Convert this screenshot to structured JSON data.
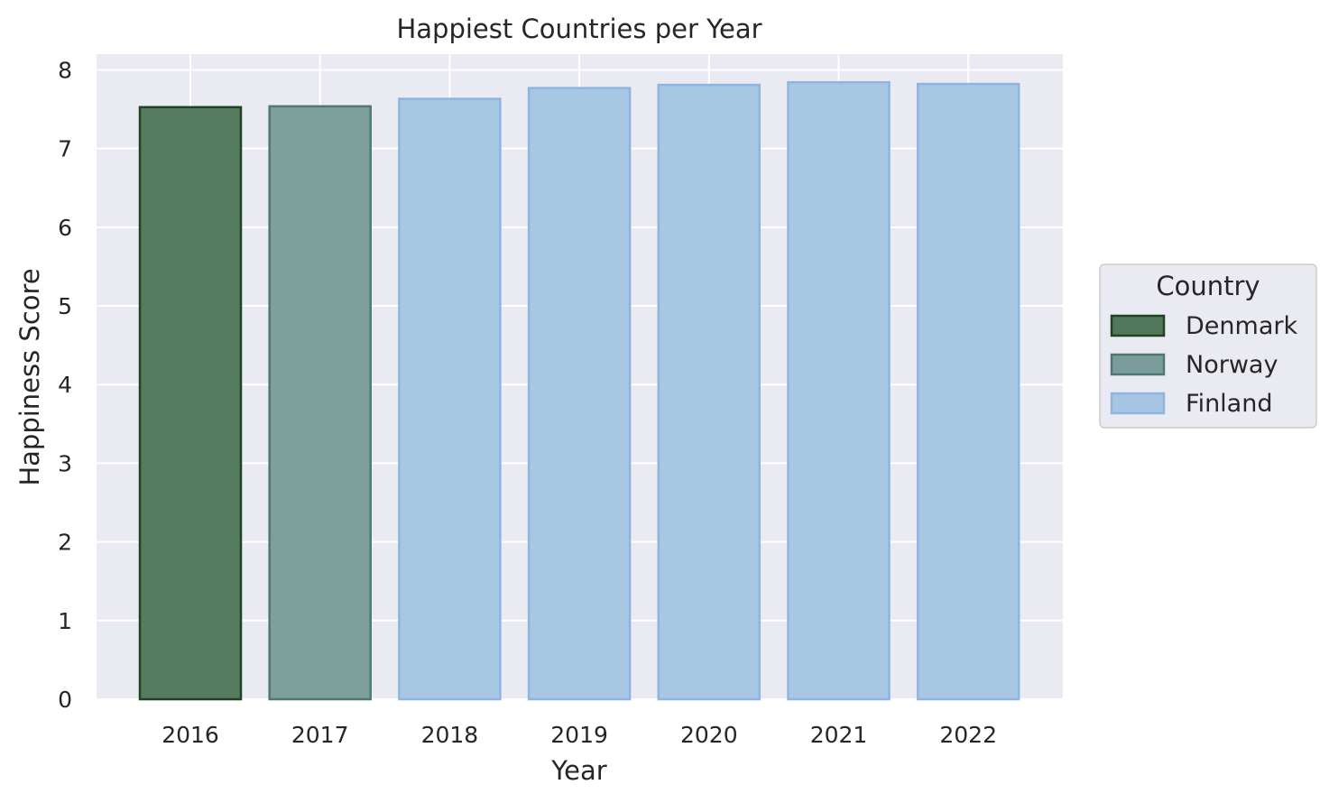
{
  "chart_data": {
    "type": "bar",
    "title": "Happiest Countries per Year",
    "xlabel": "Year",
    "ylabel": "Happiness Score",
    "categories": [
      "2016",
      "2017",
      "2018",
      "2019",
      "2020",
      "2021",
      "2022"
    ],
    "values": [
      7.526,
      7.537,
      7.632,
      7.769,
      7.809,
      7.842,
      7.821
    ],
    "countries": [
      "Denmark",
      "Norway",
      "Finland",
      "Finland",
      "Finland",
      "Finland",
      "Finland"
    ],
    "ylim": [
      0,
      8.2
    ],
    "yticks": [
      0,
      1,
      2,
      3,
      4,
      5,
      6,
      7,
      8
    ],
    "grid": true,
    "legend": {
      "title": "Country",
      "placement": "right",
      "entries": [
        {
          "name": "Denmark",
          "fill": "#52775a",
          "edge": "#1f4220"
        },
        {
          "name": "Norway",
          "fill": "#7b9c9a",
          "edge": "#4e7874"
        },
        {
          "name": "Finland",
          "fill": "#a5c5e2",
          "edge": "#8db5df"
        }
      ]
    },
    "colors": {
      "plot_background": "#eaeaf2",
      "grid": "#ffffff",
      "text": "#262626"
    }
  }
}
